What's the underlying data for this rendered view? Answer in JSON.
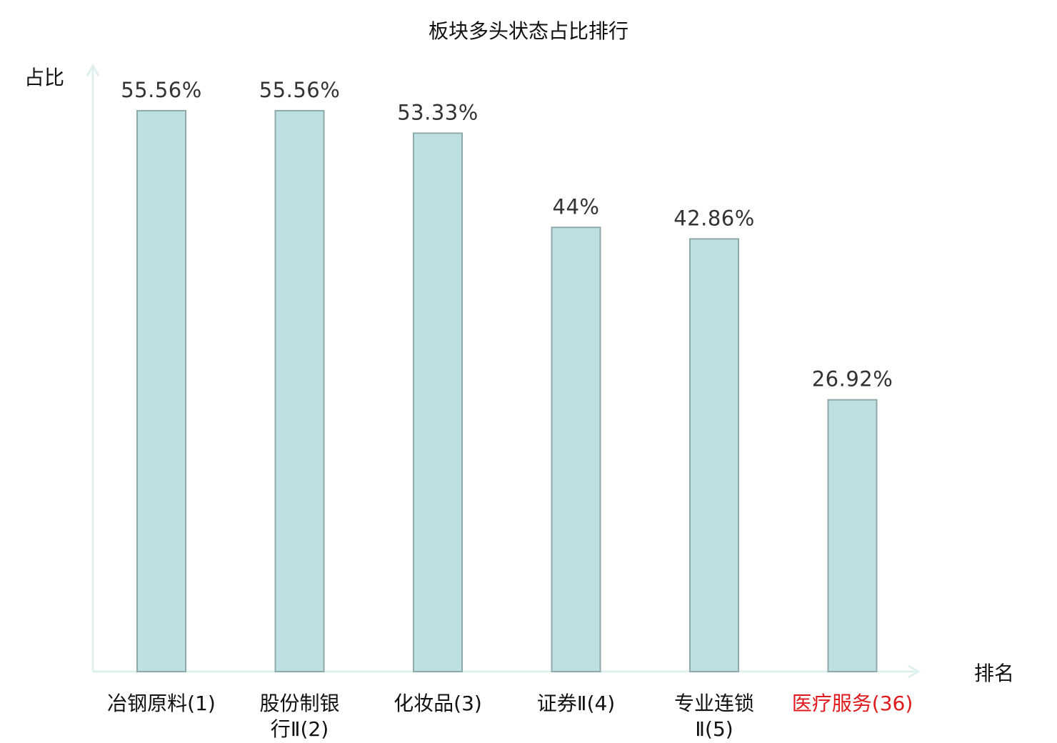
{
  "chart_data": {
    "type": "bar",
    "title": "板块多头状态占比排行",
    "ylabel": "占比",
    "xlabel": "排名",
    "ylim": [
      0,
      60
    ],
    "grid": false,
    "bar_color": "#bde0e3",
    "bar_stroke": "#8fa9aa",
    "axis_color": "#dff0ee",
    "highlight_color": "#e0191c",
    "categories": [
      {
        "lines": [
          "冶钢原料",
          "(1)"
        ],
        "highlight": false
      },
      {
        "lines": [
          "股份制银",
          "行Ⅱ(2)"
        ],
        "highlight": false
      },
      {
        "lines": [
          "化妆品",
          "(3)"
        ],
        "highlight": false
      },
      {
        "lines": [
          "证券Ⅱ",
          "(4)"
        ],
        "highlight": false
      },
      {
        "lines": [
          "专业连锁",
          "Ⅱ(5)"
        ],
        "highlight": false
      },
      {
        "lines": [
          "医疗服务",
          "(36)"
        ],
        "highlight": true
      }
    ],
    "values": [
      55.56,
      55.56,
      53.33,
      44,
      42.86,
      26.92
    ],
    "value_labels": [
      "55.56%",
      "55.56%",
      "53.33%",
      "44%",
      "42.86%",
      "26.92%"
    ]
  }
}
